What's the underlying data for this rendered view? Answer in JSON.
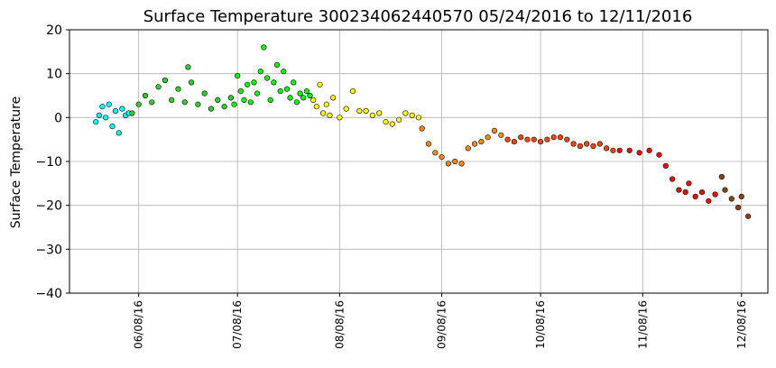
{
  "chart_data": {
    "type": "scatter",
    "title": "Surface Temperature 300234062440570  05/24/2016 to 12/11/2016",
    "xlabel": "",
    "ylabel": "Surface Temperature",
    "ylim": [
      -40,
      20
    ],
    "xlim": [
      "2016-05-18",
      "2016-12-16"
    ],
    "grid": true,
    "yticks": [
      20,
      10,
      0,
      -10,
      -20,
      -30,
      -40
    ],
    "ytick_labels": [
      "20",
      "10",
      "0",
      "−10",
      "−20",
      "−30",
      "−40"
    ],
    "xticks": [
      "2016-06-08",
      "2016-07-08",
      "2016-08-08",
      "2016-09-08",
      "2016-10-08",
      "2016-11-08",
      "2016-12-08"
    ],
    "xtick_labels": [
      "06/08/16",
      "07/08/16",
      "08/08/16",
      "09/08/16",
      "10/08/16",
      "11/08/16",
      "12/08/16"
    ],
    "series": [
      {
        "color": "#00FFFF",
        "points": [
          [
            "2016-05-26",
            -1.0
          ],
          [
            "2016-05-27",
            0.5
          ],
          [
            "2016-05-28",
            2.5
          ],
          [
            "2016-05-29",
            0.0
          ],
          [
            "2016-05-30",
            3.0
          ],
          [
            "2016-05-31",
            -2.0
          ],
          [
            "2016-06-01",
            1.5
          ],
          [
            "2016-06-02",
            -3.5
          ],
          [
            "2016-06-03",
            2.0
          ],
          [
            "2016-06-04",
            0.5
          ],
          [
            "2016-06-05",
            1.0
          ]
        ]
      },
      {
        "color": "#32CD32",
        "points": [
          [
            "2016-06-06",
            1.0
          ],
          [
            "2016-06-08",
            3.0
          ],
          [
            "2016-06-10",
            5.0
          ],
          [
            "2016-06-12",
            3.5
          ],
          [
            "2016-06-14",
            7.0
          ],
          [
            "2016-06-16",
            8.5
          ],
          [
            "2016-06-18",
            4.0
          ],
          [
            "2016-06-20",
            6.5
          ],
          [
            "2016-06-22",
            3.5
          ],
          [
            "2016-06-23",
            11.5
          ],
          [
            "2016-06-24",
            8.0
          ],
          [
            "2016-06-26",
            3.0
          ],
          [
            "2016-06-28",
            5.5
          ],
          [
            "2016-06-30",
            2.0
          ],
          [
            "2016-07-02",
            4.0
          ],
          [
            "2016-07-04",
            2.5
          ],
          [
            "2016-07-06",
            4.5
          ]
        ]
      },
      {
        "color": "#00FF00",
        "points": [
          [
            "2016-07-07",
            3.0
          ],
          [
            "2016-07-08",
            9.5
          ],
          [
            "2016-07-09",
            6.0
          ],
          [
            "2016-07-10",
            4.0
          ],
          [
            "2016-07-11",
            7.5
          ],
          [
            "2016-07-12",
            3.5
          ],
          [
            "2016-07-13",
            8.0
          ],
          [
            "2016-07-14",
            5.5
          ],
          [
            "2016-07-15",
            10.5
          ],
          [
            "2016-07-16",
            16.0
          ],
          [
            "2016-07-17",
            9.0
          ],
          [
            "2016-07-18",
            4.0
          ],
          [
            "2016-07-19",
            8.0
          ],
          [
            "2016-07-20",
            12.0
          ],
          [
            "2016-07-21",
            6.0
          ],
          [
            "2016-07-22",
            10.5
          ],
          [
            "2016-07-23",
            6.5
          ],
          [
            "2016-07-24",
            4.5
          ],
          [
            "2016-07-25",
            8.0
          ],
          [
            "2016-07-26",
            3.5
          ],
          [
            "2016-07-27",
            5.5
          ],
          [
            "2016-07-28",
            4.5
          ],
          [
            "2016-07-29",
            6.0
          ],
          [
            "2016-07-30",
            5.0
          ]
        ]
      },
      {
        "color": "#FFFF00",
        "points": [
          [
            "2016-07-31",
            4.0
          ],
          [
            "2016-08-01",
            2.5
          ],
          [
            "2016-08-02",
            7.5
          ],
          [
            "2016-08-03",
            1.0
          ],
          [
            "2016-08-04",
            3.0
          ],
          [
            "2016-08-05",
            0.5
          ],
          [
            "2016-08-06",
            4.5
          ],
          [
            "2016-08-08",
            0.0
          ],
          [
            "2016-08-10",
            2.0
          ],
          [
            "2016-08-12",
            6.0
          ],
          [
            "2016-08-14",
            1.5
          ],
          [
            "2016-08-16",
            1.5
          ],
          [
            "2016-08-18",
            0.5
          ],
          [
            "2016-08-20",
            1.0
          ],
          [
            "2016-08-22",
            -1.0
          ],
          [
            "2016-08-24",
            -1.5
          ],
          [
            "2016-08-26",
            -0.5
          ],
          [
            "2016-08-28",
            1.0
          ],
          [
            "2016-08-30",
            0.5
          ],
          [
            "2016-09-01",
            0.0
          ]
        ]
      },
      {
        "color": "#FF8C00",
        "points": [
          [
            "2016-09-02",
            -2.5
          ],
          [
            "2016-09-04",
            -6.0
          ],
          [
            "2016-09-06",
            -8.0
          ],
          [
            "2016-09-08",
            -9.0
          ],
          [
            "2016-09-10",
            -10.5
          ],
          [
            "2016-09-12",
            -10.0
          ],
          [
            "2016-09-14",
            -10.5
          ],
          [
            "2016-09-16",
            -7.0
          ],
          [
            "2016-09-18",
            -6.0
          ],
          [
            "2016-09-20",
            -5.5
          ],
          [
            "2016-09-22",
            -4.5
          ],
          [
            "2016-09-24",
            -3.0
          ],
          [
            "2016-09-26",
            -4.0
          ]
        ]
      },
      {
        "color": "#FF4500",
        "points": [
          [
            "2016-09-28",
            -5.0
          ],
          [
            "2016-09-30",
            -5.5
          ],
          [
            "2016-10-02",
            -4.5
          ],
          [
            "2016-10-04",
            -5.0
          ],
          [
            "2016-10-06",
            -5.0
          ],
          [
            "2016-10-08",
            -5.5
          ],
          [
            "2016-10-10",
            -5.0
          ],
          [
            "2016-10-12",
            -4.5
          ],
          [
            "2016-10-14",
            -4.5
          ],
          [
            "2016-10-16",
            -5.0
          ],
          [
            "2016-10-18",
            -6.0
          ],
          [
            "2016-10-20",
            -6.5
          ],
          [
            "2016-10-22",
            -6.0
          ],
          [
            "2016-10-24",
            -6.5
          ],
          [
            "2016-10-26",
            -6.0
          ],
          [
            "2016-10-28",
            -7.0
          ],
          [
            "2016-10-30",
            -7.5
          ]
        ]
      },
      {
        "color": "#FF0000",
        "points": [
          [
            "2016-11-01",
            -7.5
          ],
          [
            "2016-11-04",
            -7.5
          ],
          [
            "2016-11-07",
            -8.0
          ],
          [
            "2016-11-10",
            -7.5
          ],
          [
            "2016-11-13",
            -8.5
          ],
          [
            "2016-11-15",
            -11.0
          ],
          [
            "2016-11-17",
            -14.0
          ],
          [
            "2016-11-19",
            -16.5
          ],
          [
            "2016-11-21",
            -17.0
          ],
          [
            "2016-11-22",
            -15.0
          ],
          [
            "2016-11-24",
            -18.0
          ],
          [
            "2016-11-26",
            -17.0
          ],
          [
            "2016-11-28",
            -19.0
          ],
          [
            "2016-11-30",
            -17.5
          ]
        ]
      },
      {
        "color": "#8B4513",
        "points": [
          [
            "2016-12-02",
            -13.5
          ],
          [
            "2016-12-03",
            -16.5
          ],
          [
            "2016-12-05",
            -18.5
          ],
          [
            "2016-12-07",
            -20.5
          ],
          [
            "2016-12-08",
            -18.0
          ],
          [
            "2016-12-10",
            -22.5
          ]
        ]
      }
    ]
  }
}
